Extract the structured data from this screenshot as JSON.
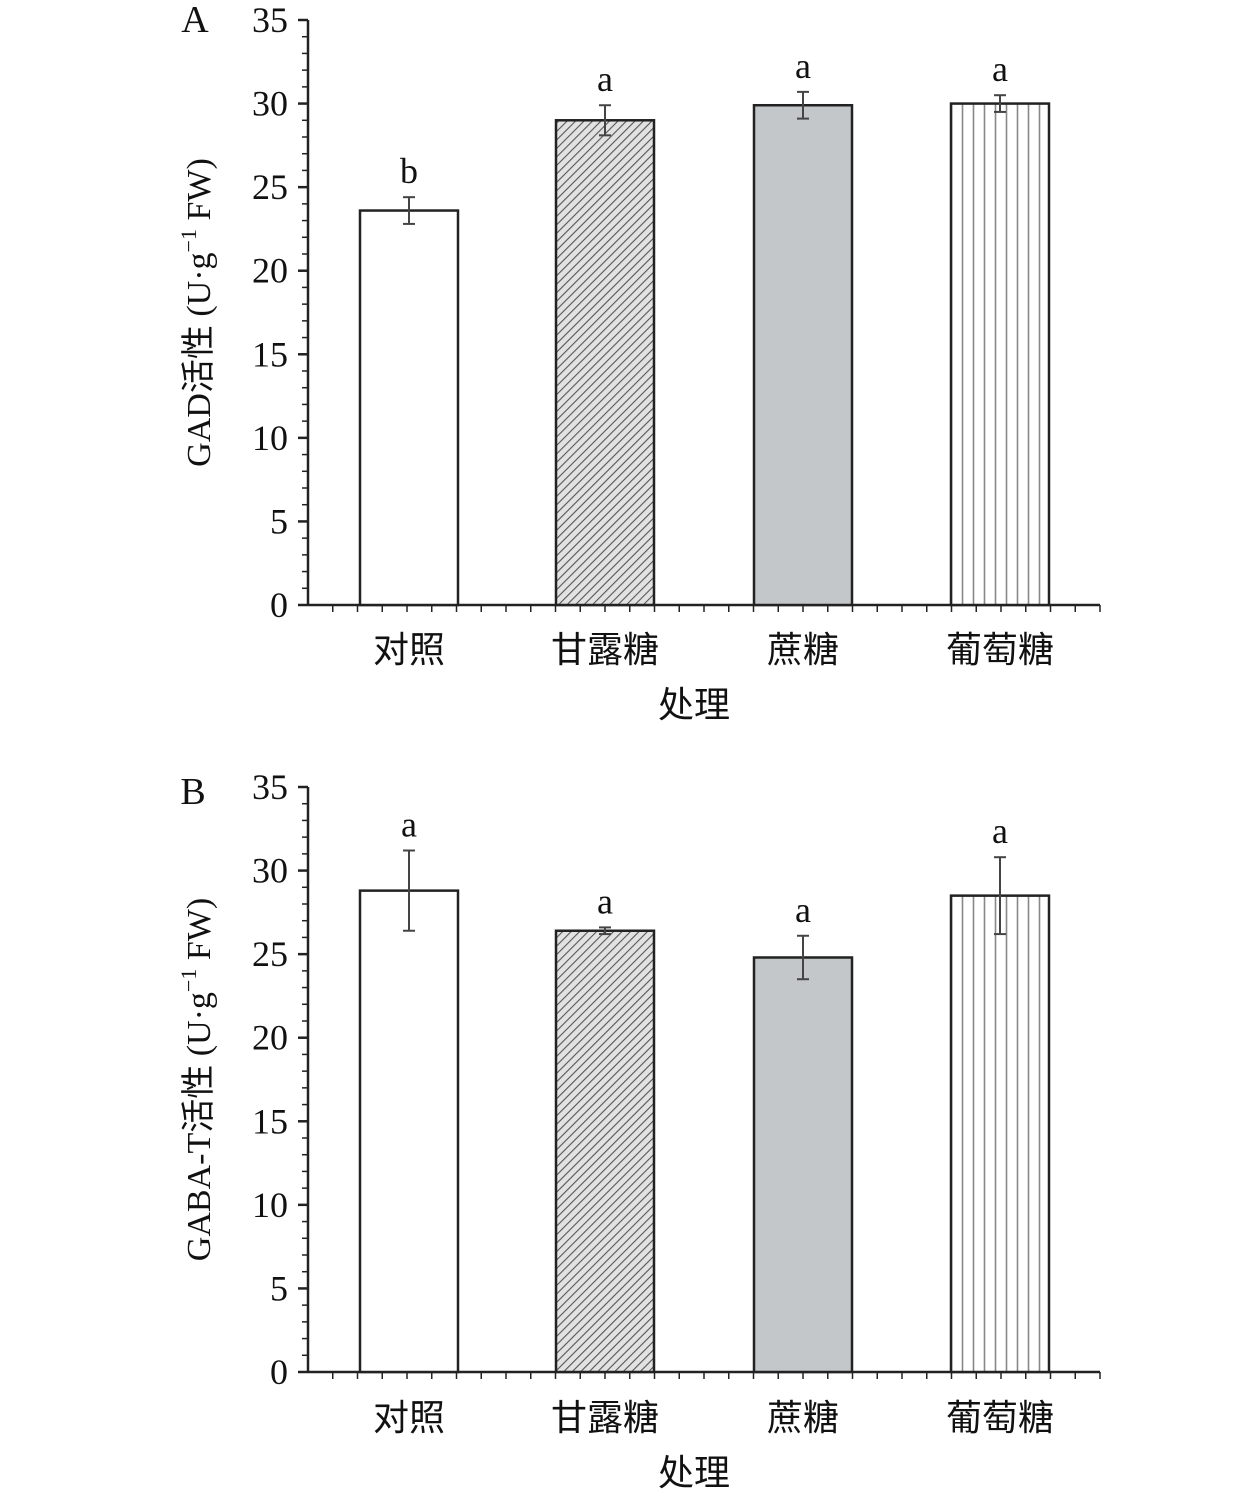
{
  "chart_data": [
    {
      "panel": "A",
      "type": "bar",
      "categories": [
        "对照",
        "甘露糖",
        "蔗糖",
        "葡萄糖"
      ],
      "values": [
        23.6,
        29.0,
        29.9,
        30.0
      ],
      "errors": [
        0.8,
        0.9,
        0.8,
        0.5
      ],
      "significance": [
        "b",
        "a",
        "a",
        "a"
      ],
      "xlabel": "处理",
      "ylabel": {
        "prefix": "GAD活性 (U·g",
        "sup": "−1",
        "suffix": " FW)"
      },
      "ylim": [
        0,
        35
      ],
      "yticks": [
        0,
        5,
        10,
        15,
        20,
        25,
        30,
        35
      ],
      "bar_fills": [
        "white",
        "diagonal-hatch",
        "gray",
        "vertical-lines"
      ]
    },
    {
      "panel": "B",
      "type": "bar",
      "categories": [
        "对照",
        "甘露糖",
        "蔗糖",
        "葡萄糖"
      ],
      "values": [
        28.8,
        26.4,
        24.8,
        28.5
      ],
      "errors": [
        2.4,
        0.2,
        1.3,
        2.3
      ],
      "significance": [
        "a",
        "a",
        "a",
        "a"
      ],
      "xlabel": "处理",
      "ylabel": {
        "prefix": "GABA-T活性 (U·g",
        "sup": "−1",
        "suffix": " FW)"
      },
      "ylim": [
        0,
        35
      ],
      "yticks": [
        0,
        5,
        10,
        15,
        20,
        25,
        30,
        35
      ],
      "bar_fills": [
        "white",
        "diagonal-hatch",
        "gray",
        "vertical-lines"
      ]
    }
  ],
  "colors": {
    "gray_fill": "#c3c7c9",
    "outline": "#222222",
    "hatch": "#555555",
    "vline": "#888888"
  }
}
